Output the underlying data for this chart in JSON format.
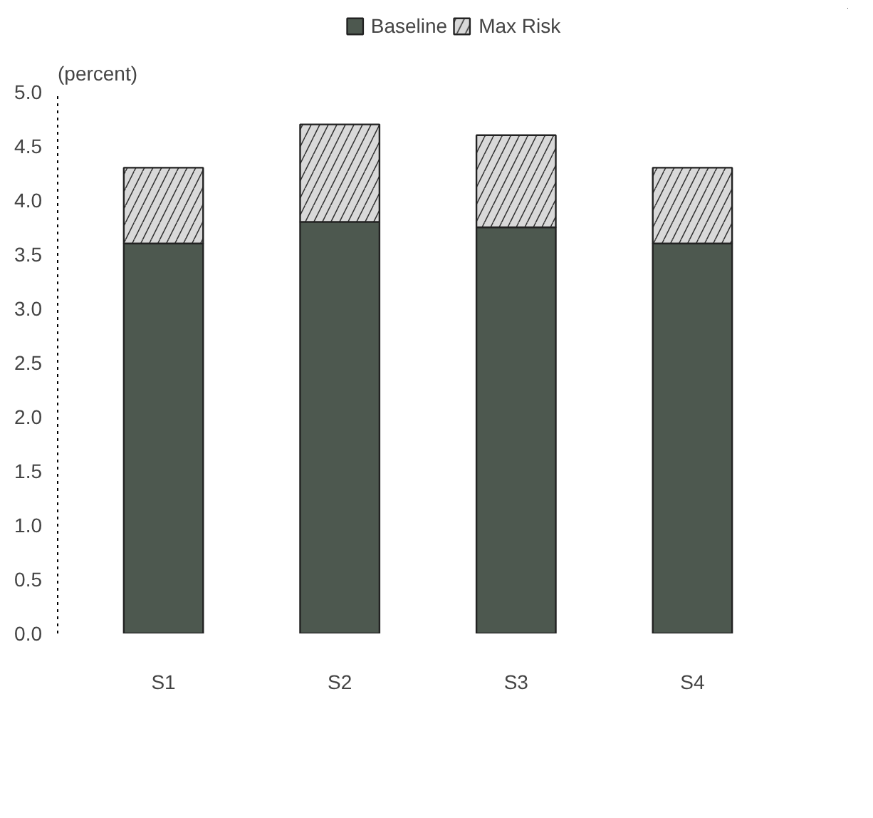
{
  "chart_data": {
    "type": "bar",
    "stacked": true,
    "ylabel": "(percent)",
    "categories": [
      "S1",
      "S2",
      "S3",
      "S4"
    ],
    "series": [
      {
        "name": "Baseline",
        "color": "#4d584f",
        "values": [
          3.6,
          3.8,
          3.75,
          3.6
        ]
      },
      {
        "name": "Max Risk",
        "color": "#d9d9d9",
        "values": [
          0.7,
          0.9,
          0.85,
          0.7
        ]
      }
    ],
    "ylim": [
      0,
      5
    ],
    "yticks": [
      {
        "value": 0,
        "label": "0.0"
      },
      {
        "value": 0.5,
        "label": "0.5"
      },
      {
        "value": 1,
        "label": "1.0"
      },
      {
        "value": 1.5,
        "label": "1.5"
      },
      {
        "value": 2,
        "label": "2.0"
      },
      {
        "value": 2.5,
        "label": "2.5"
      },
      {
        "value": 3,
        "label": "3.0"
      },
      {
        "value": 3.5,
        "label": "3.5"
      },
      {
        "value": 4,
        "label": "4.0"
      },
      {
        "value": 4.5,
        "label": "4.5"
      },
      {
        "value": 5,
        "label": "5.0"
      }
    ],
    "grid": false,
    "legend": "top"
  }
}
